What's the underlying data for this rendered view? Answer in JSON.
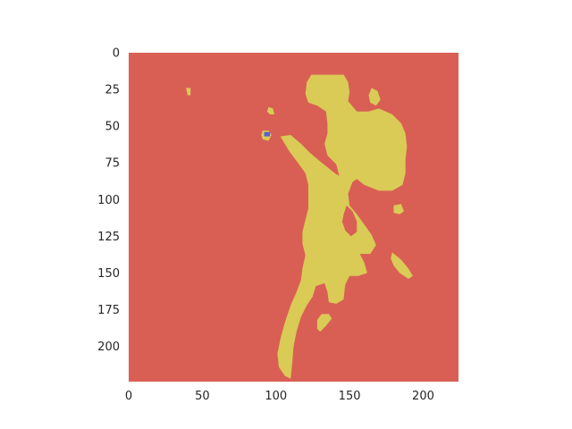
{
  "chart_data": {
    "type": "heatmap",
    "title": "",
    "xlabel": "",
    "ylabel": "",
    "image_size": [
      224,
      224
    ],
    "xlim": [
      0,
      224
    ],
    "ylim": [
      224,
      0
    ],
    "x_ticks": [
      0,
      50,
      100,
      150,
      200
    ],
    "y_ticks": [
      0,
      25,
      50,
      75,
      100,
      125,
      150,
      175,
      200
    ],
    "x_tick_labels": [
      "0",
      "50",
      "100",
      "150",
      "200"
    ],
    "y_tick_labels": [
      "0",
      "25",
      "50",
      "75",
      "100",
      "125",
      "150",
      "175",
      "200"
    ],
    "grid": false,
    "classes": [
      {
        "color": "#d95f55",
        "role": "background"
      },
      {
        "color": "#d9cb55",
        "role": "foreground"
      },
      {
        "color": "#5560d9",
        "role": "small region"
      }
    ],
    "regions": [
      {
        "class": 1,
        "points": [
          [
            110,
            222
          ],
          [
            106,
            220
          ],
          [
            102,
            214
          ],
          [
            101,
            205
          ],
          [
            103,
            195
          ],
          [
            106,
            184
          ],
          [
            110,
            172
          ],
          [
            114,
            163
          ],
          [
            117,
            155
          ],
          [
            118,
            147
          ],
          [
            120,
            138
          ],
          [
            118,
            130
          ],
          [
            118,
            122
          ],
          [
            120,
            114
          ],
          [
            122,
            106
          ],
          [
            122,
            98
          ],
          [
            122,
            90
          ],
          [
            120,
            82
          ],
          [
            115,
            75
          ],
          [
            109,
            67
          ],
          [
            103,
            57
          ],
          [
            110,
            56
          ],
          [
            117,
            62
          ],
          [
            123,
            68
          ],
          [
            130,
            74
          ],
          [
            135,
            78
          ],
          [
            140,
            82
          ],
          [
            143,
            84
          ],
          [
            141,
            76
          ],
          [
            135,
            70
          ],
          [
            133,
            62
          ],
          [
            135,
            55
          ],
          [
            135,
            48
          ],
          [
            134,
            40
          ],
          [
            128,
            36
          ],
          [
            122,
            34
          ],
          [
            120,
            28
          ],
          [
            121,
            20
          ],
          [
            124,
            15
          ],
          [
            131,
            15
          ],
          [
            140,
            15
          ],
          [
            146,
            15
          ],
          [
            149,
            20
          ],
          [
            150,
            27
          ],
          [
            149,
            33
          ],
          [
            155,
            40
          ],
          [
            163,
            40
          ],
          [
            170,
            38
          ],
          [
            179,
            42
          ],
          [
            185,
            48
          ],
          [
            188,
            55
          ],
          [
            189,
            64
          ],
          [
            188,
            73
          ],
          [
            188,
            82
          ],
          [
            186,
            90
          ],
          [
            179,
            94
          ],
          [
            170,
            94
          ],
          [
            160,
            90
          ],
          [
            155,
            86
          ],
          [
            152,
            88
          ],
          [
            149,
            96
          ],
          [
            150,
            104
          ],
          [
            155,
            110
          ],
          [
            160,
            117
          ],
          [
            165,
            124
          ],
          [
            168,
            131
          ],
          [
            164,
            137
          ],
          [
            157,
            137
          ],
          [
            160,
            143
          ],
          [
            162,
            150
          ],
          [
            156,
            152
          ],
          [
            150,
            152
          ],
          [
            147,
            158
          ],
          [
            146,
            168
          ],
          [
            141,
            171
          ],
          [
            136,
            170
          ],
          [
            135,
            163
          ],
          [
            133,
            157
          ],
          [
            127,
            159
          ],
          [
            125,
            166
          ],
          [
            121,
            172
          ],
          [
            117,
            180
          ],
          [
            114,
            190
          ],
          [
            112,
            200
          ],
          [
            111,
            212
          ]
        ]
      },
      {
        "class": 1,
        "points": [
          [
            169,
            26
          ],
          [
            171,
            32
          ],
          [
            168,
            36
          ],
          [
            164,
            34
          ],
          [
            163,
            29
          ],
          [
            165,
            24
          ]
        ]
      },
      {
        "class": 1,
        "points": [
          [
            180,
            104
          ],
          [
            185,
            103
          ],
          [
            187,
            108
          ],
          [
            184,
            110
          ],
          [
            180,
            109
          ]
        ]
      },
      {
        "class": 1,
        "points": [
          [
            179,
            136
          ],
          [
            185,
            141
          ],
          [
            190,
            147
          ],
          [
            193,
            152
          ],
          [
            190,
            154
          ],
          [
            184,
            150
          ],
          [
            180,
            145
          ],
          [
            178,
            140
          ]
        ]
      },
      {
        "class": 1,
        "points": [
          [
            128,
            182
          ],
          [
            131,
            178
          ],
          [
            136,
            178
          ],
          [
            138,
            181
          ],
          [
            134,
            186
          ],
          [
            130,
            190
          ],
          [
            128,
            188
          ]
        ]
      },
      {
        "class": 1,
        "points": [
          [
            95,
            37
          ],
          [
            98,
            38
          ],
          [
            99,
            42
          ],
          [
            96,
            42
          ],
          [
            94,
            40
          ]
        ]
      },
      {
        "class": 1,
        "points": [
          [
            91,
            53
          ],
          [
            95,
            53
          ],
          [
            97,
            56
          ],
          [
            95,
            60
          ],
          [
            91,
            59
          ],
          [
            90,
            56
          ]
        ]
      },
      {
        "class": 1,
        "points": [
          [
            39,
            24
          ],
          [
            42,
            24
          ],
          [
            42,
            29
          ],
          [
            40,
            29
          ]
        ]
      },
      {
        "class": 0,
        "points": [
          [
            146,
            110
          ],
          [
            148,
            104
          ],
          [
            152,
            108
          ],
          [
            155,
            115
          ],
          [
            155,
            122
          ],
          [
            151,
            125
          ],
          [
            147,
            121
          ],
          [
            145,
            115
          ]
        ]
      },
      {
        "class": 2,
        "points": [
          [
            92,
            54
          ],
          [
            96,
            54
          ],
          [
            96,
            57
          ],
          [
            92,
            57
          ]
        ]
      }
    ]
  }
}
